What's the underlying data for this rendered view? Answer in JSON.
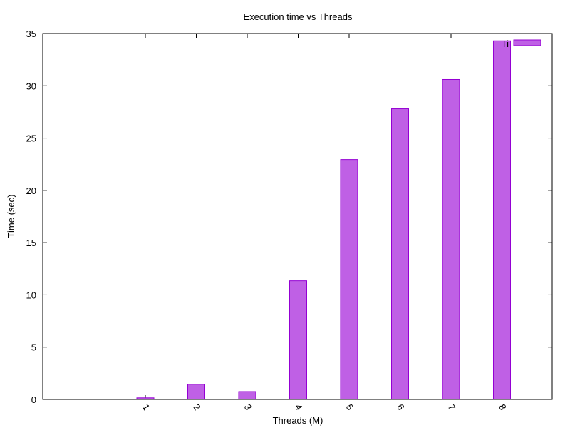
{
  "chart_data": {
    "type": "bar",
    "title": "Execution time vs Threads",
    "xlabel": "Threads (M)",
    "ylabel": "Time (sec)",
    "categories": [
      "1",
      "2",
      "3",
      "4",
      "5",
      "6",
      "7",
      "8"
    ],
    "series": [
      {
        "name": "Ti",
        "values": [
          0.15,
          1.45,
          0.75,
          11.35,
          22.95,
          27.8,
          30.6,
          34.3
        ]
      }
    ],
    "ylim": [
      0,
      35
    ],
    "yticks": [
      "0",
      "5",
      "10",
      "15",
      "20",
      "25",
      "30",
      "35"
    ],
    "grid": false,
    "legend_position": "top-right",
    "bar_color": "#bf60e5",
    "bar_edge_color": "#9400d3"
  }
}
